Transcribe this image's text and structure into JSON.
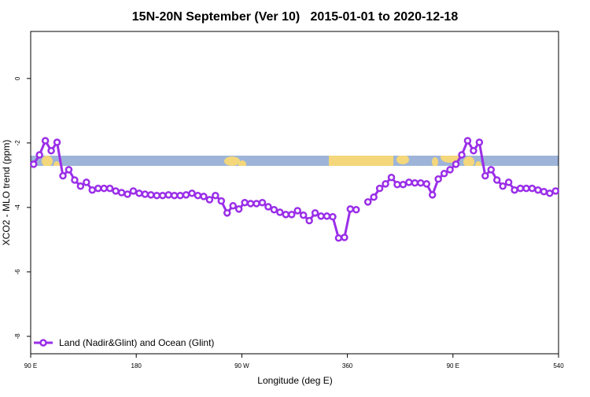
{
  "chart_data": {
    "type": "line",
    "title": "15N-20N September (Ver 10)   2015-01-01 to 2020-12-18",
    "xlabel": "Longitude (deg E)",
    "ylabel": "XCO2 - MLO trend (ppm)",
    "x": [
      92.5,
      97.5,
      102.5,
      107.5,
      112.5,
      117.5,
      122.5,
      127.5,
      132.5,
      137.5,
      142.5,
      147.5,
      152.5,
      157.5,
      162.5,
      167.5,
      172.5,
      177.5,
      182.5,
      187.5,
      192.5,
      197.5,
      202.5,
      207.5,
      212.5,
      217.5,
      222.5,
      227.5,
      232.5,
      237.5,
      242.5,
      247.5,
      252.5,
      257.5,
      262.5,
      267.5,
      272.5,
      277.5,
      282.5,
      287.5,
      292.5,
      297.5,
      302.5,
      307.5,
      312.5,
      317.5,
      322.5,
      327.5,
      332.5,
      337.5,
      342.5,
      347.5,
      352.5,
      357.5,
      362.5,
      367.5,
      372.5,
      377.5,
      382.5,
      387.5,
      392.5,
      397.5,
      402.5,
      407.5,
      412.5,
      417.5,
      422.5,
      427.5,
      432.5,
      437.5,
      442.5,
      447.5,
      452.5,
      457.5,
      462.5,
      467.5,
      472.5,
      477.5,
      482.5,
      487.5,
      492.5,
      497.5,
      502.5,
      507.5,
      512.5,
      517.5,
      522.5,
      527.5,
      532.5,
      537.5
    ],
    "series": [
      {
        "name": "Land (Nadir&Glint) and Ocean (Glint)",
        "color": "#9a2ee8",
        "values": [
          -2.66,
          -2.37,
          -1.93,
          -2.24,
          -1.98,
          -3.02,
          -2.83,
          -3.15,
          -3.34,
          -3.22,
          -3.46,
          -3.41,
          -3.41,
          -3.41,
          -3.49,
          -3.54,
          -3.59,
          -3.49,
          -3.56,
          -3.59,
          -3.61,
          -3.63,
          -3.63,
          -3.61,
          -3.63,
          -3.63,
          -3.61,
          -3.56,
          -3.63,
          -3.66,
          -3.76,
          -3.63,
          -3.8,
          -4.17,
          -3.95,
          -4.05,
          -3.85,
          -3.88,
          -3.88,
          -3.85,
          -3.98,
          -4.07,
          -4.15,
          -4.22,
          -4.22,
          -4.1,
          -4.24,
          -4.41,
          -4.17,
          -4.27,
          -4.27,
          -4.29,
          -4.95,
          -4.93,
          -4.05,
          -4.07,
          null,
          -3.83,
          -3.68,
          -3.41,
          -3.27,
          -3.07,
          -3.29,
          -3.29,
          -3.22,
          -3.24,
          -3.24,
          -3.27,
          -3.61,
          -3.12,
          -2.95,
          -2.83,
          -2.66,
          -2.37,
          -1.93,
          -2.24,
          -1.98,
          -3.02,
          -2.83,
          -3.15,
          -3.34,
          -3.22,
          -3.46,
          -3.41,
          -3.41,
          -3.41,
          -3.46,
          -3.51,
          -3.56,
          -3.49
        ]
      }
    ],
    "xlim": [
      90,
      540
    ],
    "xticks": [
      {
        "value": 90,
        "label": "90 E"
      },
      180,
      {
        "value": 270,
        "label": "90 W"
      },
      360,
      {
        "value": 450,
        "label": "90 E"
      },
      540
    ],
    "ylim": [
      -8.54,
      1.46
    ],
    "yticks": [
      -8,
      -6,
      -4,
      -2,
      0
    ],
    "legend": "bottom-left"
  }
}
